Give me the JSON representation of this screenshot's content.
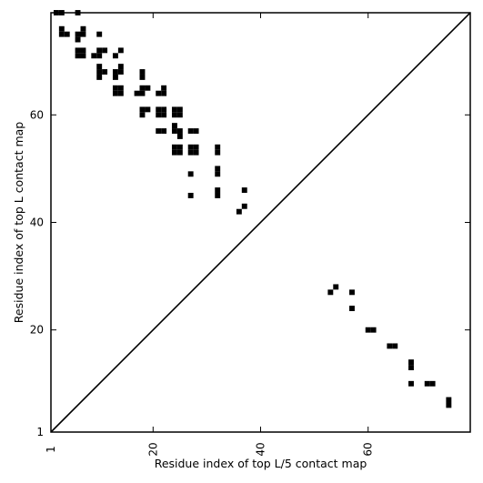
{
  "chart_data": {
    "type": "heatmap",
    "xlabel": "Residue index of top L/5 contact map",
    "ylabel": "Residue index of top L contact map",
    "xlim": [
      1,
      79
    ],
    "ylim": [
      1,
      79
    ],
    "x_ticks": [
      1,
      20,
      40,
      60
    ],
    "y_ticks": [
      1,
      20,
      40,
      60
    ],
    "x_tick_rotation": -90,
    "diagonal": true,
    "grid": false,
    "mark_color": "#000000",
    "upper_contacts": [
      [
        2,
        79
      ],
      [
        3,
        79
      ],
      [
        6,
        79
      ],
      [
        3,
        76
      ],
      [
        3,
        75
      ],
      [
        4,
        75
      ],
      [
        6,
        75
      ],
      [
        6,
        74
      ],
      [
        7,
        75
      ],
      [
        7,
        76
      ],
      [
        10,
        75
      ],
      [
        6,
        72
      ],
      [
        7,
        72
      ],
      [
        6,
        71
      ],
      [
        7,
        71
      ],
      [
        10,
        72
      ],
      [
        11,
        72
      ],
      [
        14,
        72
      ],
      [
        9,
        71
      ],
      [
        10,
        71
      ],
      [
        13,
        71
      ],
      [
        10,
        69
      ],
      [
        10,
        68
      ],
      [
        11,
        68
      ],
      [
        10,
        67
      ],
      [
        14,
        69
      ],
      [
        13,
        68
      ],
      [
        14,
        68
      ],
      [
        13,
        67
      ],
      [
        18,
        68
      ],
      [
        18,
        67
      ],
      [
        13,
        65
      ],
      [
        14,
        65
      ],
      [
        13,
        64
      ],
      [
        14,
        64
      ],
      [
        18,
        65
      ],
      [
        19,
        65
      ],
      [
        17,
        64
      ],
      [
        18,
        64
      ],
      [
        22,
        65
      ],
      [
        21,
        64
      ],
      [
        22,
        64
      ],
      [
        18,
        61
      ],
      [
        19,
        61
      ],
      [
        18,
        60
      ],
      [
        21,
        61
      ],
      [
        22,
        61
      ],
      [
        21,
        60
      ],
      [
        22,
        60
      ],
      [
        24,
        61
      ],
      [
        25,
        61
      ],
      [
        24,
        60
      ],
      [
        25,
        60
      ],
      [
        21,
        57
      ],
      [
        22,
        57
      ],
      [
        24,
        58
      ],
      [
        24,
        57
      ],
      [
        25,
        57
      ],
      [
        25,
        56
      ],
      [
        27,
        57
      ],
      [
        28,
        57
      ],
      [
        24,
        54
      ],
      [
        25,
        54
      ],
      [
        24,
        53
      ],
      [
        25,
        53
      ],
      [
        27,
        54
      ],
      [
        28,
        54
      ],
      [
        27,
        53
      ],
      [
        28,
        53
      ],
      [
        32,
        54
      ],
      [
        32,
        53
      ],
      [
        32,
        50
      ],
      [
        32,
        49
      ],
      [
        27,
        49
      ],
      [
        32,
        46
      ],
      [
        32,
        45
      ],
      [
        27,
        45
      ],
      [
        37,
        46
      ],
      [
        37,
        43
      ],
      [
        36,
        42
      ]
    ],
    "lower_contacts": [
      [
        54,
        28
      ],
      [
        53,
        27
      ],
      [
        57,
        27
      ],
      [
        57,
        24
      ],
      [
        60,
        20
      ],
      [
        61,
        20
      ],
      [
        64,
        17
      ],
      [
        65,
        17
      ],
      [
        68,
        14
      ],
      [
        68,
        13
      ],
      [
        68,
        10
      ],
      [
        71,
        10
      ],
      [
        72,
        10
      ],
      [
        75,
        7
      ],
      [
        75,
        6
      ]
    ]
  }
}
